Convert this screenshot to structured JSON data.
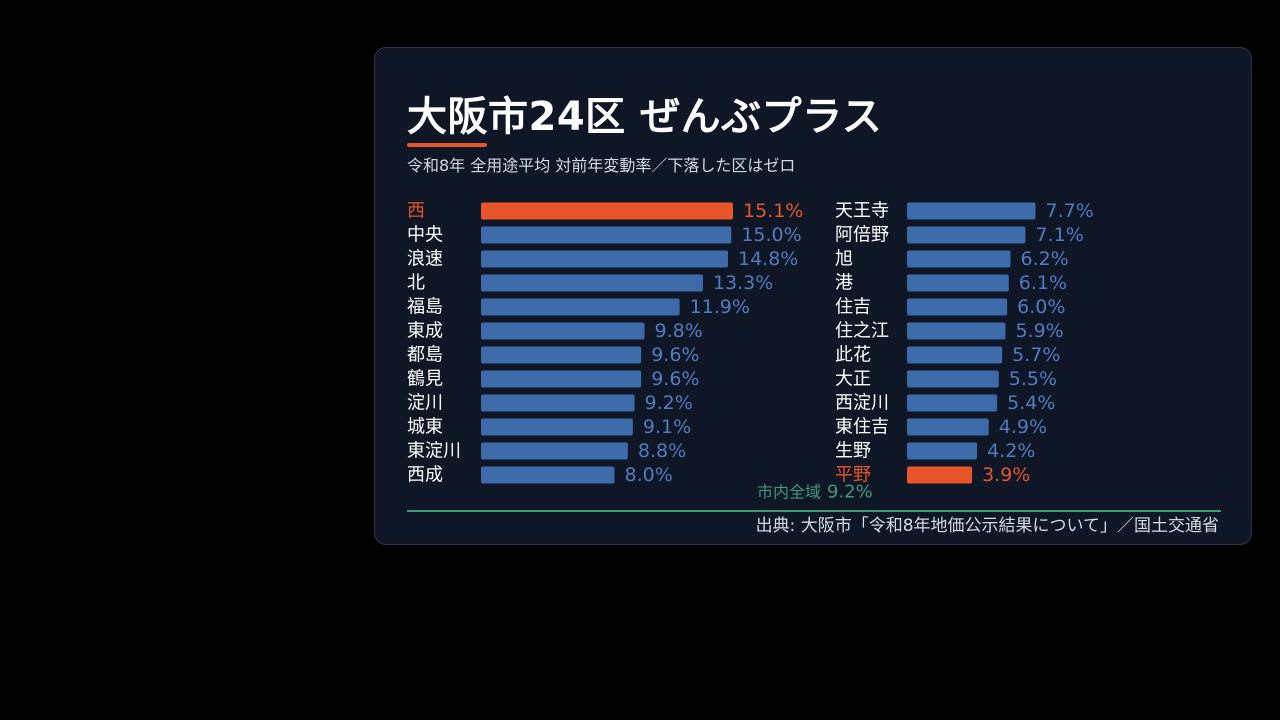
{
  "card": {
    "title": "大阪市24区 ぜんぶプラス",
    "subtitle": "令和8年 全用途平均 対前年変動率／下落した区はゼロ",
    "source": "出典: 大阪市「令和8年地価公示結果について」／国土交通省"
  },
  "colors": {
    "background": "#000000",
    "card": "#0f1726",
    "bar": "#3d6aa8",
    "highlight": "#e8552a",
    "label": "#ffffff",
    "value": "#4f7cbf",
    "average": "#3f9a78"
  },
  "chart_data": {
    "type": "bar",
    "orientation": "horizontal",
    "unit": "%",
    "xlim": [
      0,
      15.1
    ],
    "average": {
      "label": "市内全域",
      "value": 9.2,
      "value_label": "9.2%"
    },
    "columns": [
      {
        "categories": [
          "西",
          "中央",
          "浪速",
          "北",
          "福島",
          "東成",
          "都島",
          "鶴見",
          "淀川",
          "城東",
          "東淀川",
          "西成"
        ],
        "values": [
          15.1,
          15.0,
          14.8,
          13.3,
          11.9,
          9.8,
          9.6,
          9.6,
          9.2,
          9.1,
          8.8,
          8.0
        ],
        "labels": [
          "15.1%",
          "15.0%",
          "14.8%",
          "13.3%",
          "11.9%",
          "9.8%",
          "9.6%",
          "9.6%",
          "9.2%",
          "9.1%",
          "8.8%",
          "8.0%"
        ],
        "highlight": [
          "西"
        ]
      },
      {
        "categories": [
          "天王寺",
          "阿倍野",
          "旭",
          "港",
          "住吉",
          "住之江",
          "此花",
          "大正",
          "西淀川",
          "東住吉",
          "生野",
          "平野"
        ],
        "values": [
          7.7,
          7.1,
          6.2,
          6.1,
          6.0,
          5.9,
          5.7,
          5.5,
          5.4,
          4.9,
          4.2,
          3.9
        ],
        "labels": [
          "7.7%",
          "7.1%",
          "6.2%",
          "6.1%",
          "6.0%",
          "5.9%",
          "5.7%",
          "5.5%",
          "5.4%",
          "4.9%",
          "4.2%",
          "3.9%"
        ],
        "highlight": [
          "平野"
        ]
      }
    ]
  }
}
